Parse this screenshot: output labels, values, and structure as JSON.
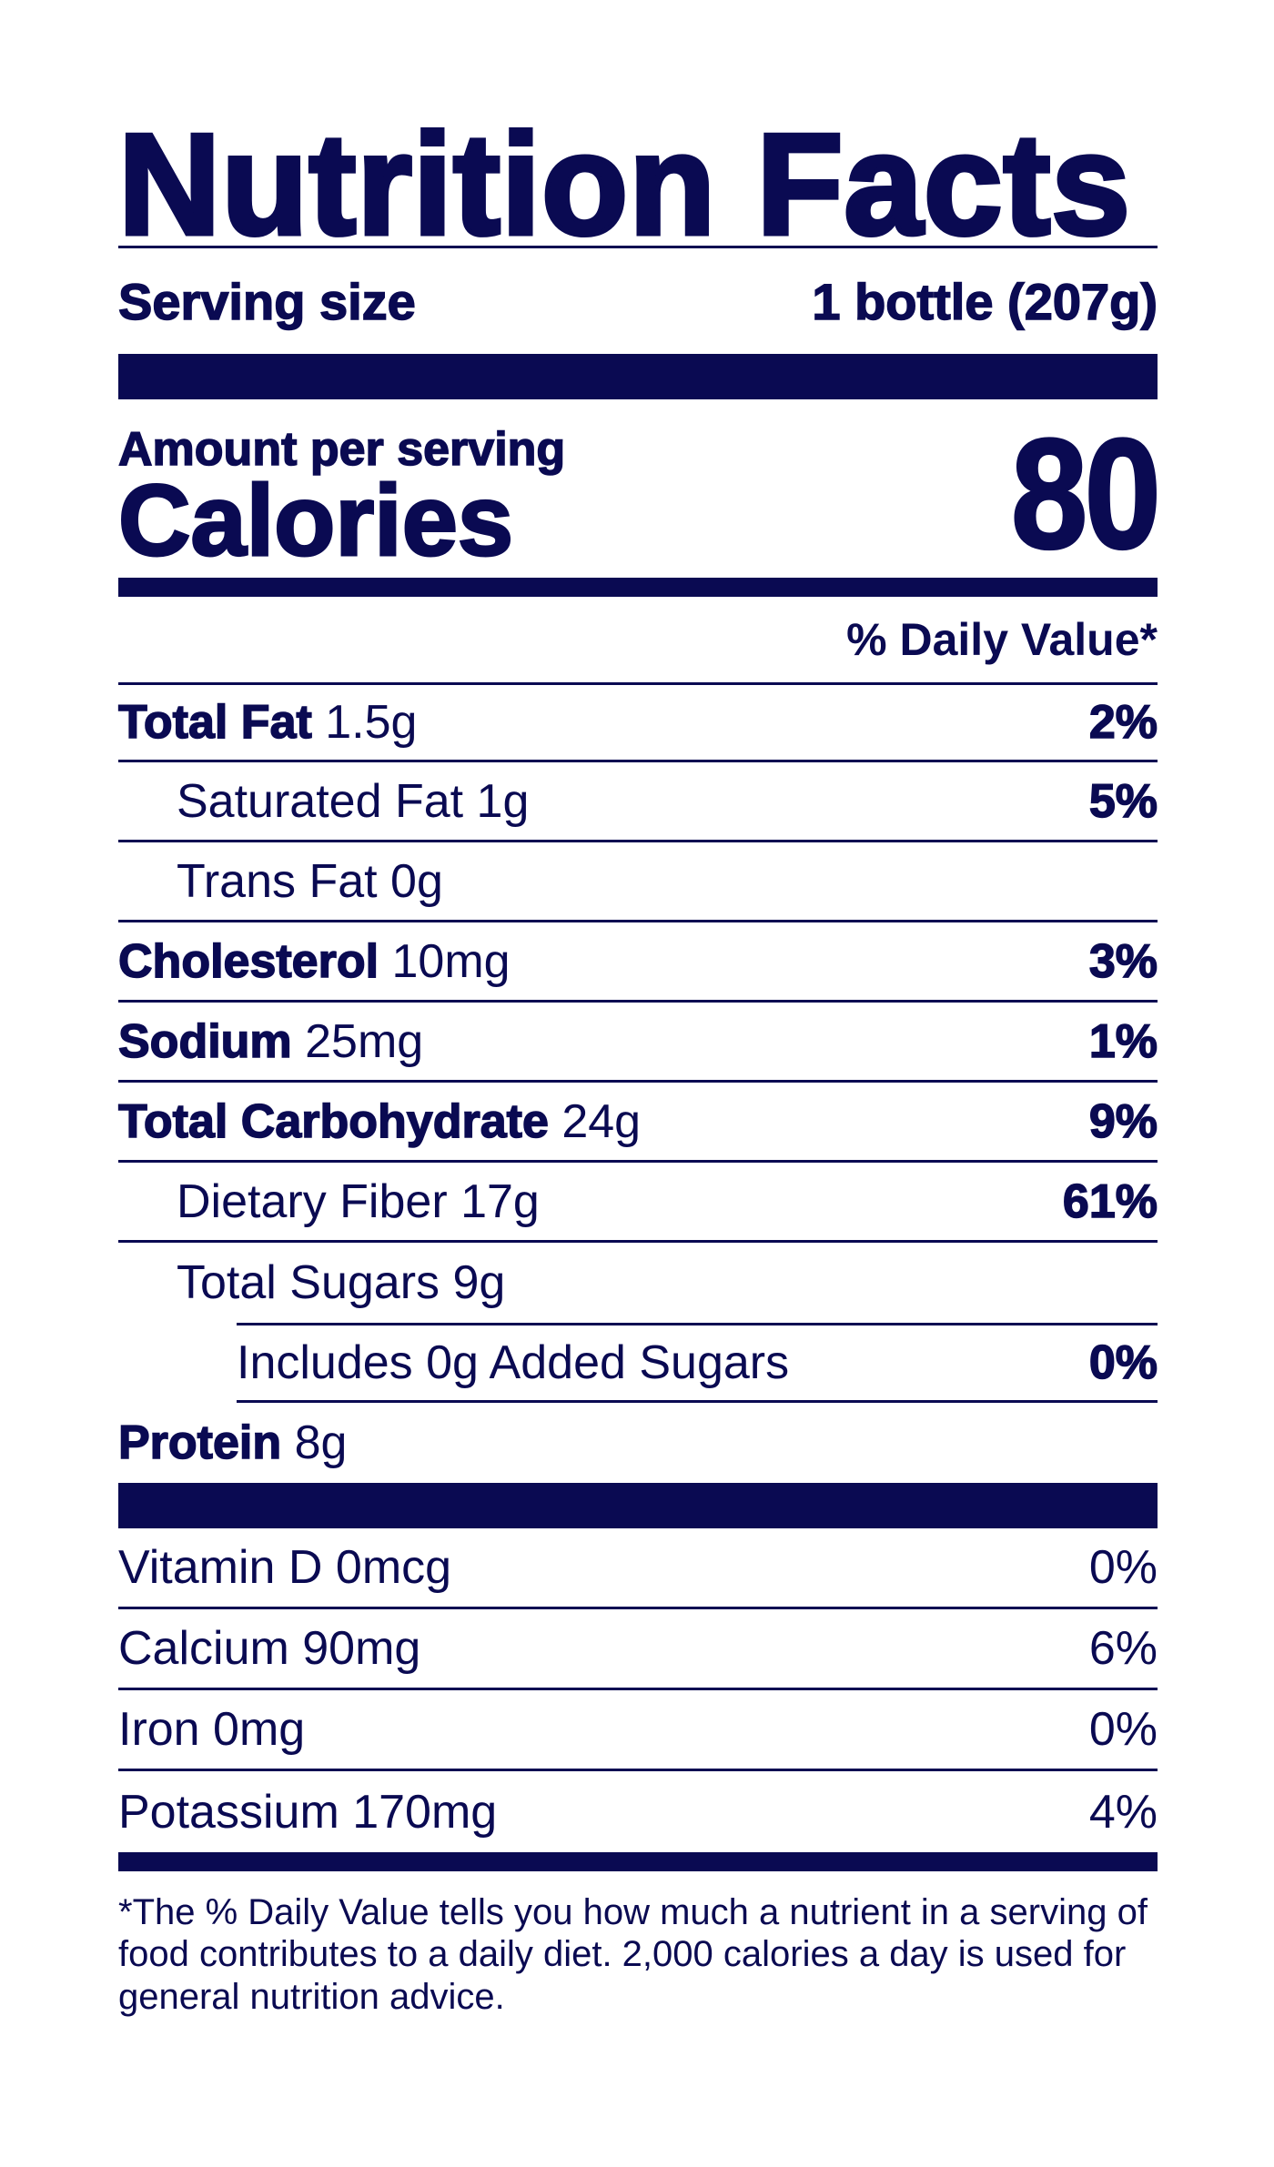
{
  "label": {
    "title": "Nutrition Facts",
    "serving": {
      "label": "Serving size",
      "value": "1 bottle (207g)"
    },
    "amount_label": "Amount per serving",
    "calories_label": "Calories",
    "calories_value": "80",
    "dv_header": "% Daily Value*",
    "nutrients": [
      {
        "name": "Total Fat",
        "amount": "1.5g",
        "pct": "2%"
      },
      {
        "name": "Saturated Fat",
        "amount": "1g",
        "pct": "5%"
      },
      {
        "name": "Trans Fat",
        "amount": "0g",
        "pct": ""
      },
      {
        "name": "Cholesterol",
        "amount": "10mg",
        "pct": "3%"
      },
      {
        "name": "Sodium",
        "amount": "25mg",
        "pct": "1%"
      },
      {
        "name": "Total Carbohydrate",
        "amount": "24g",
        "pct": "9%"
      },
      {
        "name": "Dietary Fiber",
        "amount": "17g",
        "pct": "61%"
      },
      {
        "name": "Total Sugars",
        "amount": "9g",
        "pct": ""
      },
      {
        "name": "Includes 0g Added Sugars",
        "amount": "",
        "pct": "0%"
      },
      {
        "name": "Protein",
        "amount": "8g",
        "pct": ""
      }
    ],
    "vitamins": [
      {
        "text": "Vitamin D 0mcg",
        "pct": "0%"
      },
      {
        "text": "Calcium 90mg",
        "pct": "6%"
      },
      {
        "text": "Iron 0mg",
        "pct": "0%"
      },
      {
        "text": "Potassium 170mg",
        "pct": "4%"
      }
    ],
    "footnote": "*The % Daily Value tells you how much a nutrient in a serving of food contributes to a daily diet. 2,000 calories a day is used for general nutrition advice.",
    "colors": {
      "ink": "#0a0a52",
      "background": "#ffffff"
    }
  }
}
